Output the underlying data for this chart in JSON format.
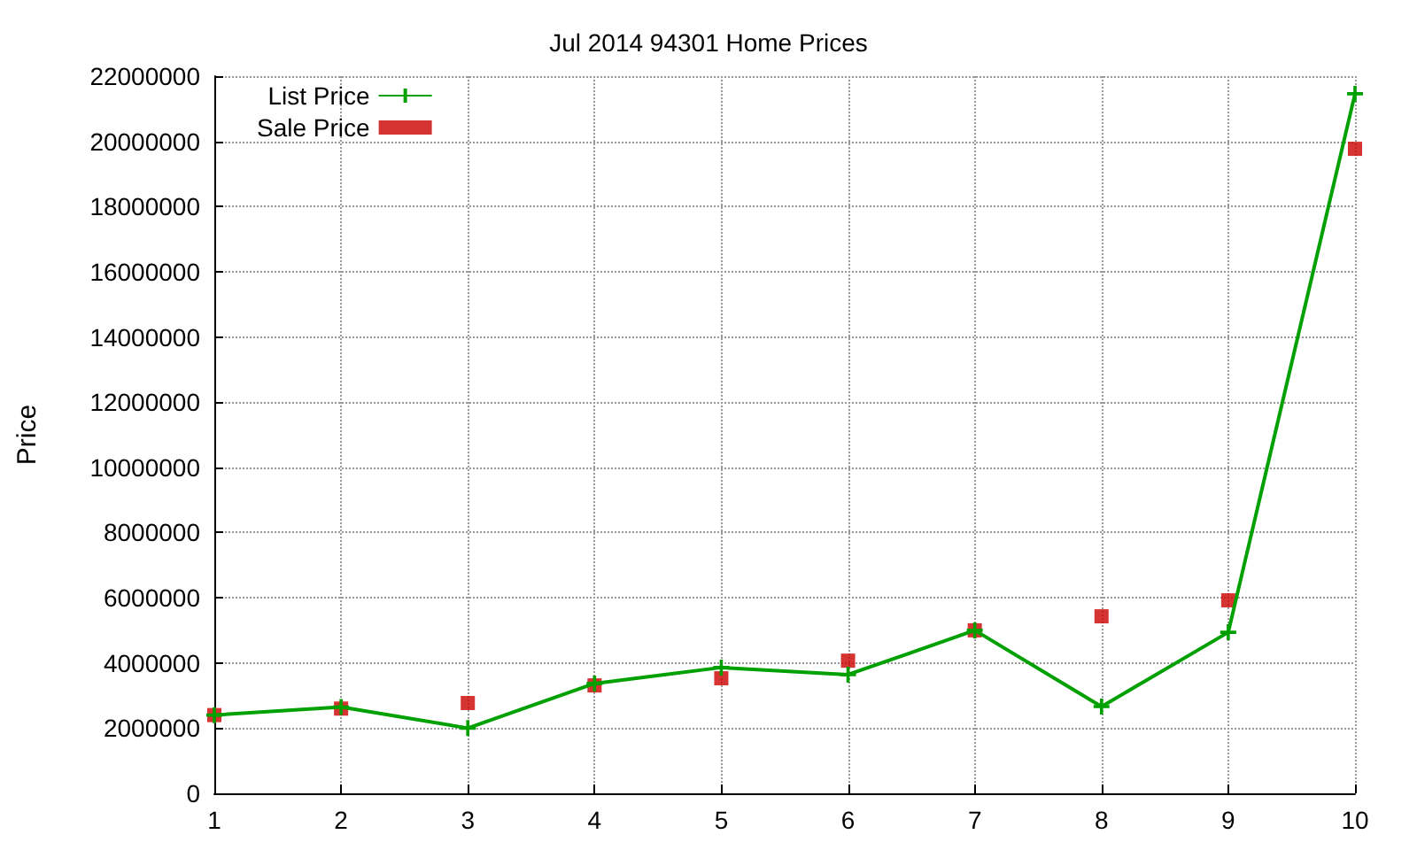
{
  "chart_data": {
    "type": "line",
    "title": "Jul 2014 94301 Home Prices",
    "ylabel": "Price",
    "x": [
      1,
      2,
      3,
      4,
      5,
      6,
      7,
      8,
      9,
      10
    ],
    "xlim": [
      1,
      10
    ],
    "xticks": [
      1,
      2,
      3,
      4,
      5,
      6,
      7,
      8,
      9,
      10
    ],
    "ylim": [
      0,
      22000000
    ],
    "yticks": [
      0,
      2000000,
      4000000,
      6000000,
      8000000,
      10000000,
      12000000,
      14000000,
      16000000,
      18000000,
      20000000,
      22000000
    ],
    "grid": true,
    "legend": "top left",
    "line_style": "solid",
    "series": [
      {
        "name": "List Price",
        "marker": "cross",
        "color": "#00a000",
        "values": [
          2400000,
          2650000,
          2000000,
          3370000,
          3860000,
          3640000,
          5000000,
          2660000,
          4940000,
          21460000
        ]
      },
      {
        "name": "Sale Price",
        "type": "scatter",
        "marker": "square",
        "color": "#cc0000",
        "values": [
          2400000,
          2600000,
          2770000,
          3310000,
          3530000,
          4070000,
          5000000,
          5430000,
          5920000,
          19770000
        ]
      }
    ]
  }
}
